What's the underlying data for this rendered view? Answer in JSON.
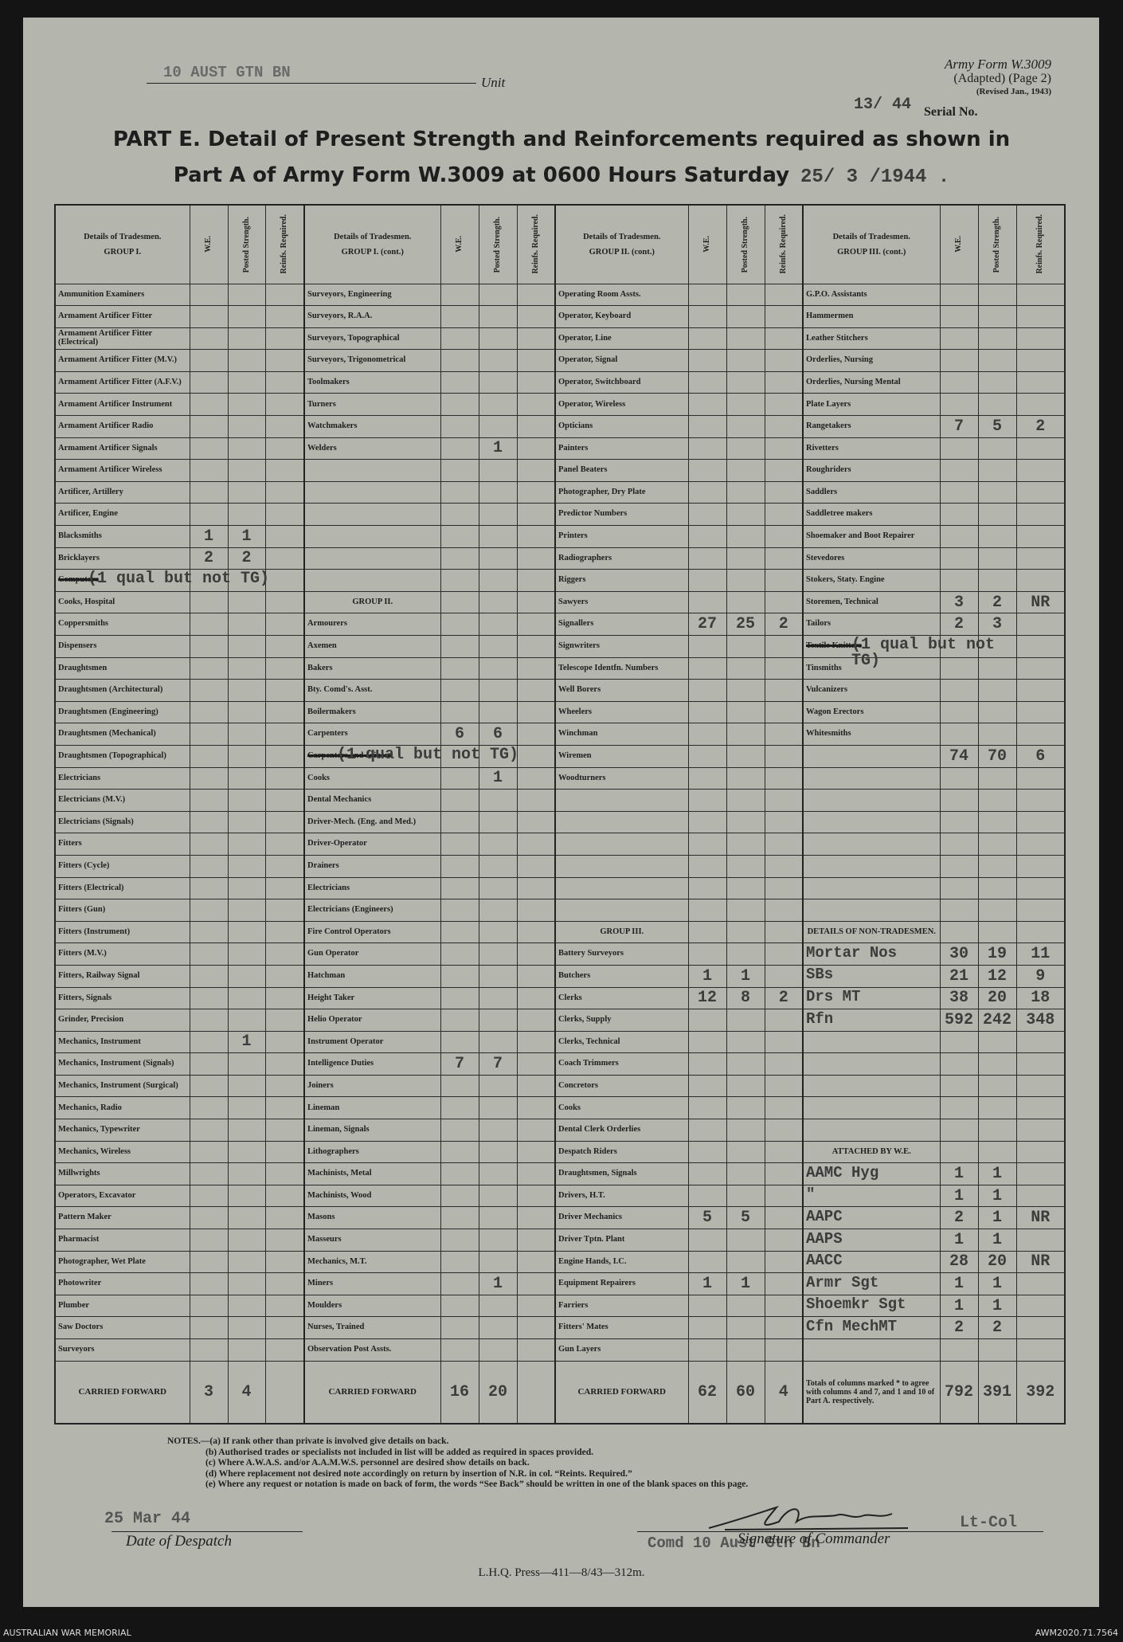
{
  "header": {
    "unit_typed": "10 AUST GTN BN",
    "unit_label": "Unit",
    "form": "Army Form W.3009",
    "adapted": "(Adapted) (Page 2)",
    "revised": "(Revised Jan., 1943)",
    "serial_typed": "13/ 44",
    "serial_label": "Serial No."
  },
  "title": {
    "line1": "PART E. Detail of Present Strength and Reinforcements required as shown in",
    "line2": "Part A of Army Form W.3009 at 0600 Hours Saturday",
    "date": "25/ 3 /1944 ."
  },
  "table": {
    "details_label": "Details of Tradesmen.",
    "column_headers": [
      "W.E.",
      "Posted Strength.",
      "Reinfs. Required."
    ],
    "groups": [
      {
        "title": "GROUP I.",
        "rows": [
          {
            "name": "Ammunition Examiners"
          },
          {
            "name": "Armament Artificer Fitter"
          },
          {
            "name": "Armament Artificer Fitter (Electrical)"
          },
          {
            "name": "Armament Artificer Fitter (M.V.)"
          },
          {
            "name": "Armament Artificer Fitter (A.F.V.)"
          },
          {
            "name": "Armament Artificer Instrument"
          },
          {
            "name": "Armament Artificer Radio"
          },
          {
            "name": "Armament Artificer Signals"
          },
          {
            "name": "Armament Artificer Wireless"
          },
          {
            "name": "Artificer, Artillery"
          },
          {
            "name": "Artificer, Engine"
          },
          {
            "name": "Blacksmiths",
            "we": 1,
            "posted": 1
          },
          {
            "name": "Bricklayers",
            "we": 2,
            "posted": 2
          },
          {
            "name": "Computors",
            "struck": true,
            "note": "(1 qual but not TG)"
          },
          {
            "name": "Cooks, Hospital"
          },
          {
            "name": "Coppersmiths"
          },
          {
            "name": "Dispensers"
          },
          {
            "name": "Draughtsmen"
          },
          {
            "name": "Draughtsmen (Architectural)"
          },
          {
            "name": "Draughtsmen (Engineering)"
          },
          {
            "name": "Draughtsmen (Mechanical)"
          },
          {
            "name": "Draughtsmen (Topographical)"
          },
          {
            "name": "Electricians"
          },
          {
            "name": "Electricians (M.V.)"
          },
          {
            "name": "Electricians (Signals)"
          },
          {
            "name": "Fitters"
          },
          {
            "name": "Fitters (Cycle)"
          },
          {
            "name": "Fitters (Electrical)"
          },
          {
            "name": "Fitters (Gun)"
          },
          {
            "name": "Fitters (Instrument)"
          },
          {
            "name": "Fitters (M.V.)"
          },
          {
            "name": "Fitters, Railway Signal"
          },
          {
            "name": "Fitters, Signals"
          },
          {
            "name": "Grinder, Precision"
          },
          {
            "name": "Mechanics, Instrument",
            "posted": 1
          },
          {
            "name": "Mechanics, Instrument (Signals)"
          },
          {
            "name": "Mechanics, Instrument (Surgical)"
          },
          {
            "name": "Mechanics, Radio"
          },
          {
            "name": "Mechanics, Typewriter"
          },
          {
            "name": "Mechanics, Wireless"
          },
          {
            "name": "Millwrights"
          },
          {
            "name": "Operators, Excavator"
          },
          {
            "name": "Pattern Maker"
          },
          {
            "name": "Pharmacist"
          },
          {
            "name": "Photographer, Wet Plate"
          },
          {
            "name": "Photowriter"
          },
          {
            "name": "Plumber"
          },
          {
            "name": "Saw Doctors"
          },
          {
            "name": "Surveyors"
          }
        ],
        "carried": {
          "label": "CARRIED FORWARD",
          "we": 3,
          "posted": 4
        }
      },
      {
        "title": "GROUP I. (cont.)",
        "rows": [
          {
            "name": "Surveyors, Engineering"
          },
          {
            "name": "Surveyors, R.A.A."
          },
          {
            "name": "Surveyors, Topographical"
          },
          {
            "name": "Surveyors, Trigonometrical"
          },
          {
            "name": "Toolmakers"
          },
          {
            "name": "Turners"
          },
          {
            "name": "Watchmakers"
          },
          {
            "name": "Welders",
            "posted": 1
          },
          null,
          null,
          null,
          null,
          null,
          null,
          {
            "heading": "GROUP II."
          },
          {
            "name": "Armourers"
          },
          {
            "name": "Axemen"
          },
          {
            "name": "Bakers"
          },
          {
            "name": "Bty. Comd's. Asst."
          },
          {
            "name": "Boilermakers"
          },
          {
            "name": "Carpenters",
            "we": 6,
            "posted": 6
          },
          {
            "name": "Carpenters and Joiners",
            "struck": true,
            "note": "(1 qual but not TG)"
          },
          {
            "name": "Cooks",
            "posted": 1
          },
          {
            "name": "Dental Mechanics"
          },
          {
            "name": "Driver-Mech. (Eng. and Med.)"
          },
          {
            "name": "Driver-Operator"
          },
          {
            "name": "Drainers"
          },
          {
            "name": "Electricians"
          },
          {
            "name": "Electricians (Engineers)"
          },
          {
            "name": "Fire Control Operators"
          },
          {
            "name": "Gun Operator"
          },
          {
            "name": "Hatchman"
          },
          {
            "name": "Height Taker"
          },
          {
            "name": "Helio Operator"
          },
          {
            "name": "Instrument Operator"
          },
          {
            "name": "Intelligence Duties",
            "we": 7,
            "posted": 7
          },
          {
            "name": "Joiners"
          },
          {
            "name": "Lineman"
          },
          {
            "name": "Lineman, Signals"
          },
          {
            "name": "Lithographers"
          },
          {
            "name": "Machinists, Metal"
          },
          {
            "name": "Machinists, Wood"
          },
          {
            "name": "Masons"
          },
          {
            "name": "Masseurs"
          },
          {
            "name": "Mechanics, M.T."
          },
          {
            "name": "Miners",
            "posted": 1
          },
          {
            "name": "Moulders"
          },
          {
            "name": "Nurses, Trained"
          },
          {
            "name": "Observation Post Assts."
          }
        ],
        "carried": {
          "label": "CARRIED FORWARD",
          "we": 16,
          "posted": 20
        }
      },
      {
        "title": "GROUP II. (cont.)",
        "rows": [
          {
            "name": "Operating Room Assts."
          },
          {
            "name": "Operator, Keyboard"
          },
          {
            "name": "Operator, Line"
          },
          {
            "name": "Operator, Signal"
          },
          {
            "name": "Operator, Switchboard"
          },
          {
            "name": "Operator, Wireless"
          },
          {
            "name": "Opticians"
          },
          {
            "name": "Painters"
          },
          {
            "name": "Panel Beaters"
          },
          {
            "name": "Photographer, Dry Plate"
          },
          {
            "name": "Predictor Numbers"
          },
          {
            "name": "Printers"
          },
          {
            "name": "Radiographers"
          },
          {
            "name": "Riggers"
          },
          {
            "name": "Sawyers"
          },
          {
            "name": "Signallers",
            "we": 27,
            "posted": 25,
            "reinfs": 2
          },
          {
            "name": "Signwriters"
          },
          {
            "name": "Telescope Identfn. Numbers"
          },
          {
            "name": "Well Borers"
          },
          {
            "name": "Wheelers"
          },
          {
            "name": "Winchman"
          },
          {
            "name": "Wiremen"
          },
          {
            "name": "Woodturners"
          },
          null,
          null,
          null,
          null,
          null,
          null,
          {
            "heading": "GROUP III."
          },
          {
            "name": "Battery Surveyors"
          },
          {
            "name": "Butchers",
            "we": 1,
            "posted": 1
          },
          {
            "name": "Clerks",
            "we": 12,
            "posted": 8,
            "reinfs": 2
          },
          {
            "name": "Clerks, Supply"
          },
          {
            "name": "Clerks, Technical"
          },
          {
            "name": "Coach Trimmers"
          },
          {
            "name": "Concretors"
          },
          {
            "name": "Cooks"
          },
          {
            "name": "Dental Clerk Orderlies"
          },
          {
            "name": "Despatch Riders"
          },
          {
            "name": "Draughtsmen, Signals"
          },
          {
            "name": "Drivers, H.T."
          },
          {
            "name": "Driver Mechanics",
            "we": 5,
            "posted": 5
          },
          {
            "name": "Driver Tptn. Plant"
          },
          {
            "name": "Engine Hands, I.C."
          },
          {
            "name": "Equipment Repairers",
            "we": 1,
            "posted": 1
          },
          {
            "name": "Farriers"
          },
          {
            "name": "Fitters' Mates"
          },
          {
            "name": "Gun Layers"
          }
        ],
        "carried": {
          "label": "CARRIED FORWARD",
          "we": 62,
          "posted": 60,
          "reinfs": 4
        }
      },
      {
        "title": "GROUP III. (cont.)",
        "rows": [
          {
            "name": "G.P.O. Assistants"
          },
          {
            "name": "Hammermen"
          },
          {
            "name": "Leather Stitchers"
          },
          {
            "name": "Orderlies, Nursing"
          },
          {
            "name": "Orderlies, Nursing Mental"
          },
          {
            "name": "Plate Layers"
          },
          {
            "name": "Rangetakers",
            "we": 7,
            "posted": 5,
            "reinfs": 2
          },
          {
            "name": "Rivetters"
          },
          {
            "name": "Roughriders"
          },
          {
            "name": "Saddlers"
          },
          {
            "name": "Saddletree makers"
          },
          {
            "name": "Shoemaker and Boot Repairer"
          },
          {
            "name": "Stevedores"
          },
          {
            "name": "Stokers, Staty. Engine"
          },
          {
            "name": "Storemen, Technical",
            "we": 3,
            "posted": 2,
            "reinfs": "NR"
          },
          {
            "name": "Tailors",
            "we": 2,
            "posted": 3
          },
          {
            "name": "Textile Knitters",
            "struck": true,
            "note": "(1 qual but not TG)"
          },
          {
            "name": "Tinsmiths"
          },
          {
            "name": "Vulcanizers"
          },
          {
            "name": "Wagon Erectors"
          },
          {
            "name": "Whitesmiths"
          },
          {
            "we": 74,
            "posted": 70,
            "reinfs": 6
          },
          null,
          null,
          null,
          null,
          null,
          null,
          null,
          {
            "heading": "DETAILS OF NON-TRADESMEN."
          },
          {
            "name": "Mortar Nos",
            "typed": true,
            "we": 30,
            "posted": 19,
            "reinfs": 11
          },
          {
            "name": "SBs",
            "typed": true,
            "we": 21,
            "posted": 12,
            "reinfs": 9
          },
          {
            "name": "Drs MT",
            "typed": true,
            "we": 38,
            "posted": 20,
            "reinfs": 18
          },
          {
            "name": "Rfn",
            "typed": true,
            "we": 592,
            "posted": 242,
            "reinfs": 348
          },
          null,
          null,
          null,
          null,
          null,
          {
            "heading": "ATTACHED BY W.E."
          },
          {
            "name": "AAMC Hyg",
            "typed": true,
            "we": 1,
            "posted": 1
          },
          {
            "name": "\"",
            "typed": true,
            "we": 1,
            "posted": 1
          },
          {
            "name": "AAPC",
            "typed": true,
            "we": 2,
            "posted": 1,
            "reinfs": "NR"
          },
          {
            "name": "AAPS",
            "typed": true,
            "we": 1,
            "posted": 1
          },
          {
            "name": "AACC",
            "typed": true,
            "we": 28,
            "posted": 20,
            "reinfs": "NR"
          },
          {
            "name": "Armr Sgt",
            "typed": true,
            "we": 1,
            "posted": 1
          },
          {
            "name": "Shoemkr Sgt",
            "typed": true,
            "we": 1,
            "posted": 1
          },
          {
            "name": "Cfn MechMT",
            "typed": true,
            "we": 2,
            "posted": 2
          },
          null
        ],
        "carried": {
          "label": "Totals of columns marked * to agree with columns 4 and 7, and 1 and 10 of Part A. respectively.",
          "we": 792,
          "posted": 391,
          "reinfs": 392
        }
      }
    ]
  },
  "notes": [
    "NOTES.—(a) If rank other than private is involved give details on back.",
    "(b) Authorised trades or specialists not included in list will be added as required in spaces provided.",
    "(c) Where A.W.A.S. and/or A.A.M.W.S. personnel are desired show details on back.",
    "(d) Where replacement not desired note accordingly on return by insertion of N.R. in col. “Reints. Required.”",
    "(e) Where any request or notation is made on back of form, the words “See Back” should be written in one of the blank spaces on this page."
  ],
  "footer": {
    "despatch_date": "25 Mar 44",
    "despatch_label": "Date of Despatch",
    "rank": "Lt-Col",
    "commander_typed": "Comd 10 Aust Gtn Bn",
    "signature_label": "Signature of Commander",
    "press": "L.H.Q. Press—411—8/43—312m."
  },
  "caption": {
    "left": "AUSTRALIAN WAR MEMORIAL",
    "right": "AWM2020.71.7564"
  }
}
